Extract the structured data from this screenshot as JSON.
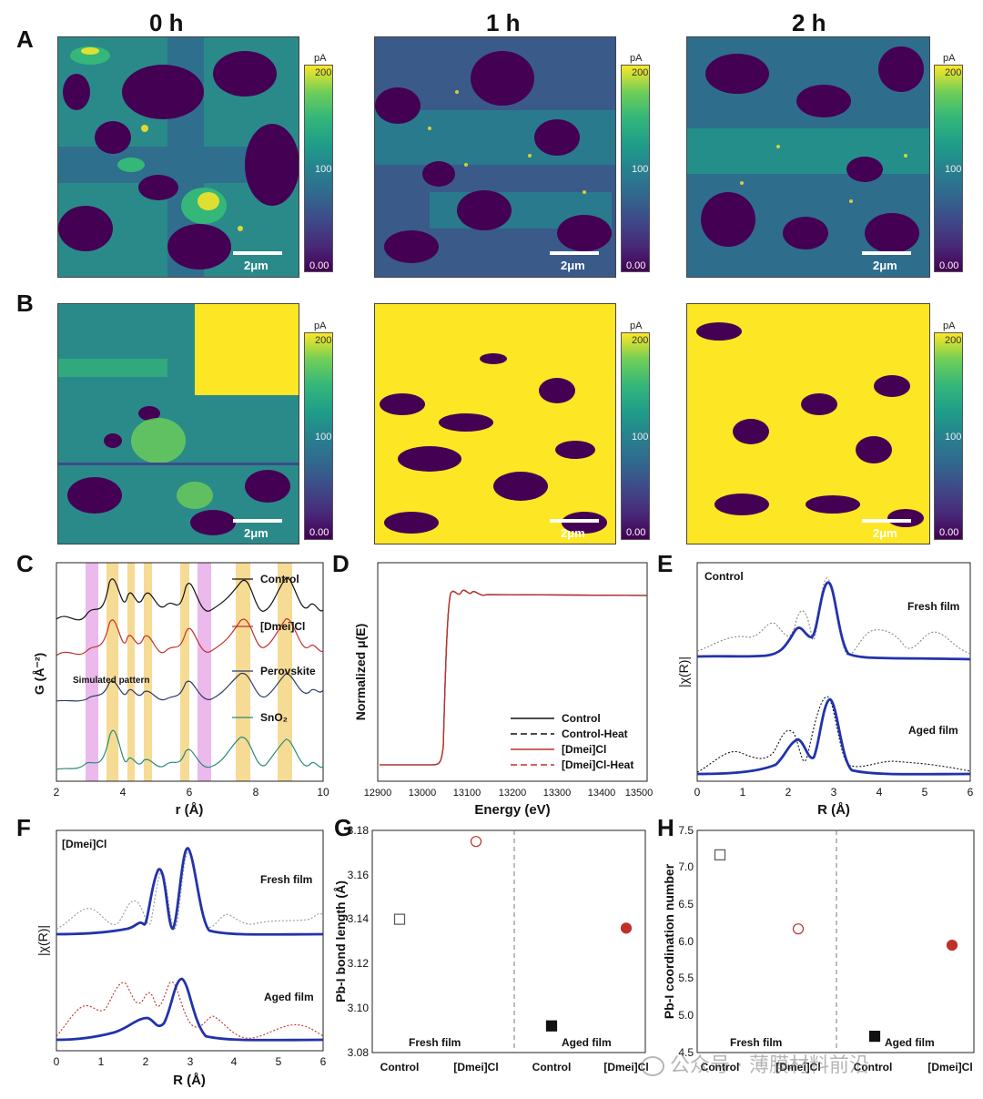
{
  "panel_labels": {
    "a": "A",
    "b": "B",
    "c": "C",
    "d": "D",
    "e": "E",
    "f": "F",
    "g": "G",
    "h": "H"
  },
  "time_labels": [
    "0 h",
    "1 h",
    "2 h"
  ],
  "scale_bar": "2μm",
  "colorbar": {
    "unit": "pA",
    "max": "200",
    "mid": "100",
    "min": "0.00"
  },
  "colors": {
    "control": "#111111",
    "dmei": "#c0302a",
    "fit": "#2233aa",
    "highlight_yellow": "#f5d78a",
    "highlight_pink": "#e6a8e6"
  },
  "chart_data": [
    {
      "id": "C",
      "type": "line",
      "xlabel": "r (Å)",
      "ylabel": "G (Å⁻²)",
      "xlim": [
        2,
        10
      ],
      "xticks": [
        "2",
        "4",
        "6",
        "8",
        "10"
      ],
      "series": [
        {
          "name": "Control"
        },
        {
          "name": "[Dmei]Cl"
        },
        {
          "name": "Perovskite"
        },
        {
          "name": "SnO₂"
        }
      ],
      "annotation": "Simulated pattern"
    },
    {
      "id": "D",
      "type": "line",
      "xlabel": "Energy (eV)",
      "ylabel": "Normalized μ(E)",
      "xlim": [
        12900,
        13500
      ],
      "xticks": [
        "12900",
        "13000",
        "13100",
        "13200",
        "13300",
        "13400",
        "13500"
      ],
      "edge_energy": 13040,
      "legend": [
        "Control",
        "Control-Heat",
        "[Dmei]Cl",
        "[Dmei]Cl-Heat"
      ]
    },
    {
      "id": "E",
      "type": "line",
      "title": "Control",
      "xlabel": "R (Å)",
      "ylabel": "|χ(R)|",
      "xlim": [
        0,
        6
      ],
      "xticks": [
        "0",
        "1",
        "2",
        "3",
        "4",
        "5",
        "6"
      ],
      "labels": [
        "Fresh film",
        "Aged film"
      ],
      "peaks_R": [
        2.2,
        2.85
      ]
    },
    {
      "id": "F",
      "type": "line",
      "title": "[Dmei]Cl",
      "xlabel": "R (Å)",
      "ylabel": "|χ(R)|",
      "xlim": [
        0,
        6
      ],
      "xticks": [
        "0",
        "1",
        "2",
        "3",
        "4",
        "5",
        "6"
      ],
      "labels": [
        "Fresh film",
        "Aged film"
      ],
      "peaks_R": [
        2.2,
        2.9
      ]
    },
    {
      "id": "G",
      "type": "scatter",
      "ylabel": "Pb-I bond length (Å)",
      "ylim": [
        3.08,
        3.18
      ],
      "yticks": [
        "3.08",
        "3.10",
        "3.12",
        "3.14",
        "3.16",
        "3.18"
      ],
      "categories": [
        "Control",
        "[Dmei]Cl",
        "Control",
        "[Dmei]Cl"
      ],
      "group_labels": [
        "Fresh film",
        "Aged film"
      ],
      "points": [
        {
          "category": "Control",
          "group": "Fresh film",
          "value": 3.14
        },
        {
          "category": "[Dmei]Cl",
          "group": "Fresh film",
          "value": 3.175
        },
        {
          "category": "Control",
          "group": "Aged film",
          "value": 3.092
        },
        {
          "category": "[Dmei]Cl",
          "group": "Aged film",
          "value": 3.136
        }
      ]
    },
    {
      "id": "H",
      "type": "scatter",
      "ylabel": "Pb-I coordination number",
      "ylim": [
        4.5,
        7.5
      ],
      "yticks": [
        "4.5",
        "5.0",
        "5.5",
        "6.0",
        "6.5",
        "7.0",
        "7.5"
      ],
      "categories": [
        "Control",
        "[Dmei]Cl",
        "Control",
        "[Dmei]Cl"
      ],
      "group_labels": [
        "Fresh film",
        "Aged film"
      ],
      "points": [
        {
          "category": "Control",
          "group": "Fresh film",
          "value": 7.17
        },
        {
          "category": "[Dmei]Cl",
          "group": "Fresh film",
          "value": 6.17
        },
        {
          "category": "Control",
          "group": "Aged film",
          "value": 4.72
        },
        {
          "category": "[Dmei]Cl",
          "group": "Aged film",
          "value": 5.95
        }
      ]
    }
  ],
  "watermark": "公众号 · 薄膜材料前沿"
}
